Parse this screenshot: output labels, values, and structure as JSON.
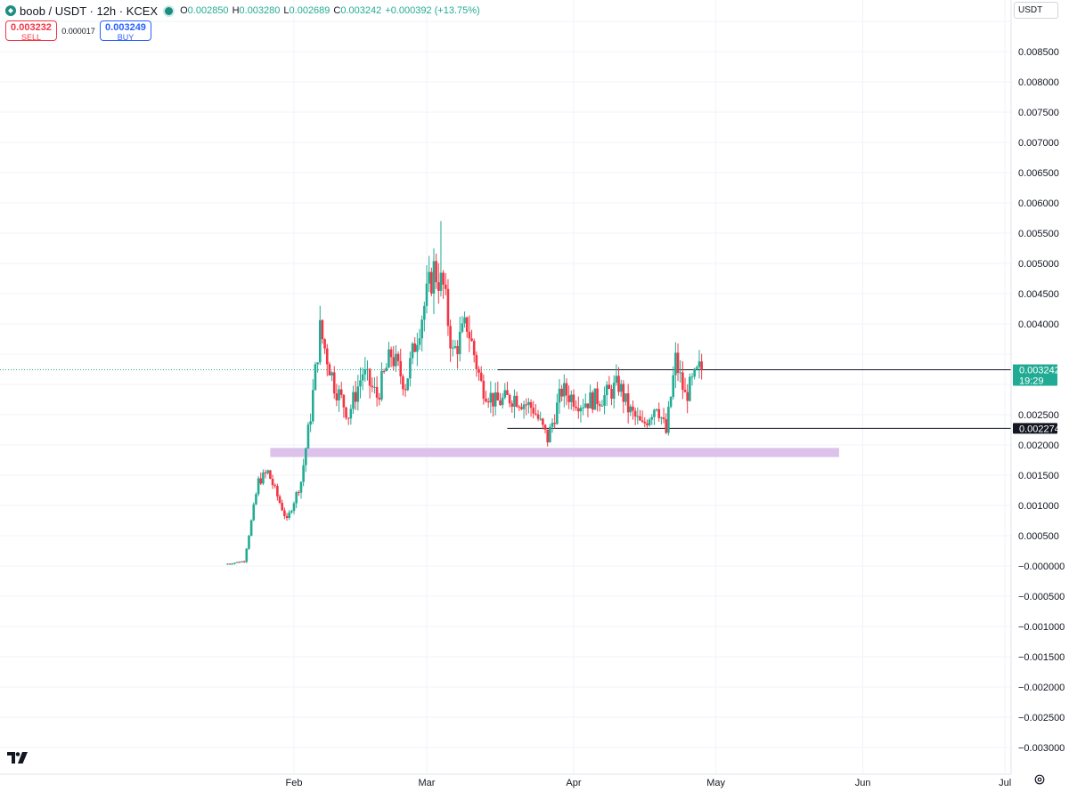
{
  "header": {
    "title": "boob / USDT · 12h · KCEX",
    "ohlc": [
      {
        "key": "O",
        "value": "0.002850"
      },
      {
        "key": "H",
        "value": "0.003280"
      },
      {
        "key": "L",
        "value": "0.002689"
      },
      {
        "key": "C",
        "value": "0.003242"
      }
    ],
    "change": "+0.000392 (+13.75%)"
  },
  "trade": {
    "sell_price": "0.003232",
    "sell_label": "SELL",
    "spread": "0.000017",
    "buy_price": "0.003249",
    "buy_label": "BUY"
  },
  "currency": "USDT",
  "colors": {
    "up": "#22ab94",
    "down": "#f23645",
    "zone": "#dcc2ea",
    "line": "#131722"
  },
  "chart_data": {
    "type": "candlestick",
    "y_ticks": [
      "0.008500",
      "0.008000",
      "0.007500",
      "0.007000",
      "0.006500",
      "0.006000",
      "0.005500",
      "0.005000",
      "0.004500",
      "0.004000",
      "0.002500",
      "0.002000",
      "0.001500",
      "0.001000",
      "0.000500",
      "−0.000000",
      "−0.000500",
      "−0.001000",
      "−0.001500",
      "−0.002000",
      "−0.002500",
      "−0.003000"
    ],
    "ylim": [
      -0.0033,
      0.0091
    ],
    "x_ticks": [
      {
        "label": "Feb",
        "date": "2025-02-01"
      },
      {
        "label": "Mar",
        "date": "2025-03-01"
      },
      {
        "label": "Apr",
        "date": "2025-04-01"
      },
      {
        "label": "May",
        "date": "2025-05-01"
      },
      {
        "label": "Jun",
        "date": "2025-06-01"
      },
      {
        "label": "Jul",
        "date": "2025-07-01"
      }
    ],
    "anchor_points": [
      {
        "date": "2025-01-18",
        "price": 3e-05
      },
      {
        "date": "2025-01-22",
        "price": 8e-05
      },
      {
        "date": "2025-01-25",
        "price": 0.0014
      },
      {
        "date": "2025-01-27",
        "price": 0.00155
      },
      {
        "date": "2025-01-31",
        "price": 0.00075
      },
      {
        "date": "2025-02-03",
        "price": 0.0014
      },
      {
        "date": "2025-02-05",
        "price": 0.0025
      },
      {
        "date": "2025-02-07",
        "price": 0.0039
      },
      {
        "date": "2025-02-10",
        "price": 0.003
      },
      {
        "date": "2025-02-13",
        "price": 0.0025
      },
      {
        "date": "2025-02-16",
        "price": 0.0032
      },
      {
        "date": "2025-02-19",
        "price": 0.0028
      },
      {
        "date": "2025-02-22",
        "price": 0.0035
      },
      {
        "date": "2025-02-25",
        "price": 0.003
      },
      {
        "date": "2025-02-28",
        "price": 0.004
      },
      {
        "date": "2025-03-03",
        "price": 0.0049
      },
      {
        "date": "2025-03-05",
        "price": 0.0046
      },
      {
        "date": "2025-03-07",
        "price": 0.0035
      },
      {
        "date": "2025-03-10",
        "price": 0.004
      },
      {
        "date": "2025-03-13",
        "price": 0.003
      },
      {
        "date": "2025-03-16",
        "price": 0.0027
      },
      {
        "date": "2025-03-20",
        "price": 0.0028
      },
      {
        "date": "2025-03-24",
        "price": 0.0026
      },
      {
        "date": "2025-03-27",
        "price": 0.0021
      },
      {
        "date": "2025-03-30",
        "price": 0.0029
      },
      {
        "date": "2025-04-03",
        "price": 0.0027
      },
      {
        "date": "2025-04-08",
        "price": 0.0028
      },
      {
        "date": "2025-04-11",
        "price": 0.003
      },
      {
        "date": "2025-04-13",
        "price": 0.0026
      },
      {
        "date": "2025-04-16",
        "price": 0.0023
      },
      {
        "date": "2025-04-19",
        "price": 0.0027
      },
      {
        "date": "2025-04-21",
        "price": 0.0022
      },
      {
        "date": "2025-04-23",
        "price": 0.0034
      },
      {
        "date": "2025-04-25",
        "price": 0.0028
      },
      {
        "date": "2025-04-28",
        "price": 0.00324
      }
    ],
    "max_high": 0.0057,
    "max_high_date": "2025-03-04",
    "last_price": "0.003242",
    "countdown": "19:29",
    "price_lines": [
      {
        "label": "0.003243",
        "value": 0.003243
      },
      {
        "label": "0.002274",
        "value": 0.002274
      }
    ],
    "support_zone": {
      "low": 0.0018,
      "high": 0.00195,
      "start": "2025-01-27",
      "end": "2025-05-27"
    }
  }
}
